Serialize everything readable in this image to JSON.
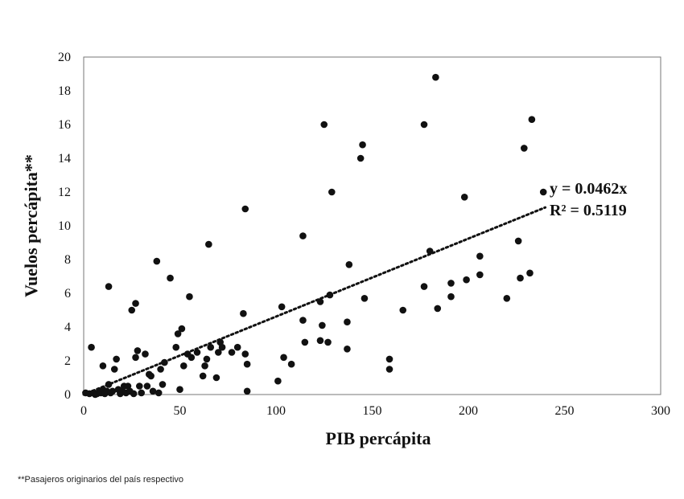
{
  "chart_data": {
    "type": "scatter",
    "title": "",
    "xlabel": "PIB percápita",
    "ylabel": "Vuelos percápita**",
    "xlim": [
      0,
      300
    ],
    "ylim": [
      0,
      20
    ],
    "x_ticks": [
      0,
      50,
      100,
      150,
      200,
      250,
      300
    ],
    "y_ticks": [
      0,
      2,
      4,
      6,
      8,
      10,
      12,
      14,
      16,
      18,
      20
    ],
    "grid": false,
    "point_color": "#111111",
    "trendline": {
      "type": "linear through origin",
      "slope": 0.0462,
      "x_range": [
        0,
        240
      ],
      "style": "dotted",
      "equation": "y = 0.0462x",
      "r_squared": "R² = 0.5119"
    },
    "points": [
      [
        1,
        0.1
      ],
      [
        3,
        0.05
      ],
      [
        4,
        2.8
      ],
      [
        5,
        0.1
      ],
      [
        6,
        0
      ],
      [
        7,
        0.05
      ],
      [
        8,
        0.2
      ],
      [
        9,
        0.1
      ],
      [
        10,
        0.3
      ],
      [
        10,
        1.7
      ],
      [
        11,
        0.05
      ],
      [
        12,
        0.2
      ],
      [
        13,
        0.6
      ],
      [
        13,
        6.4
      ],
      [
        14,
        0.1
      ],
      [
        15,
        0.2
      ],
      [
        16,
        1.5
      ],
      [
        17,
        2.1
      ],
      [
        18,
        0.3
      ],
      [
        19,
        0.05
      ],
      [
        20,
        0.2
      ],
      [
        21,
        0.5
      ],
      [
        22,
        0.1
      ],
      [
        23,
        0.5
      ],
      [
        24,
        0.2
      ],
      [
        25,
        5
      ],
      [
        26,
        0.05
      ],
      [
        27,
        5.4
      ],
      [
        27,
        2.2
      ],
      [
        28,
        2.6
      ],
      [
        29,
        0.5
      ],
      [
        30,
        0.1
      ],
      [
        32,
        2.4
      ],
      [
        33,
        0.5
      ],
      [
        34,
        1.2
      ],
      [
        35,
        1.1
      ],
      [
        36,
        0.2
      ],
      [
        38,
        7.9
      ],
      [
        39,
        0.1
      ],
      [
        40,
        1.5
      ],
      [
        41,
        0.6
      ],
      [
        42,
        1.9
      ],
      [
        45,
        6.9
      ],
      [
        48,
        2.8
      ],
      [
        49,
        3.6
      ],
      [
        50,
        0.3
      ],
      [
        51,
        3.9
      ],
      [
        52,
        1.7
      ],
      [
        54,
        2.4
      ],
      [
        55,
        5.8
      ],
      [
        56,
        2.2
      ],
      [
        59,
        2.5
      ],
      [
        62,
        1.1
      ],
      [
        63,
        1.7
      ],
      [
        64,
        2.1
      ],
      [
        65,
        8.9
      ],
      [
        66,
        2.8
      ],
      [
        69,
        1.0
      ],
      [
        70,
        2.5
      ],
      [
        71,
        3.1
      ],
      [
        72,
        2.8
      ],
      [
        77,
        2.5
      ],
      [
        80,
        2.8
      ],
      [
        83,
        4.8
      ],
      [
        84,
        2.4
      ],
      [
        84,
        11
      ],
      [
        85,
        0.2
      ],
      [
        85,
        1.8
      ],
      [
        101,
        0.8
      ],
      [
        103,
        5.2
      ],
      [
        104,
        2.2
      ],
      [
        108,
        1.8
      ],
      [
        114,
        4.4
      ],
      [
        114,
        9.4
      ],
      [
        115,
        3.1
      ],
      [
        123,
        3.2
      ],
      [
        123,
        5.5
      ],
      [
        124,
        4.1
      ],
      [
        125,
        16
      ],
      [
        127,
        3.1
      ],
      [
        128,
        5.9
      ],
      [
        129,
        12
      ],
      [
        137,
        4.3
      ],
      [
        137,
        2.7
      ],
      [
        138,
        7.7
      ],
      [
        144,
        14
      ],
      [
        145,
        14.8
      ],
      [
        146,
        5.7
      ],
      [
        159,
        2.1
      ],
      [
        159,
        1.5
      ],
      [
        166,
        5
      ],
      [
        177,
        6.4
      ],
      [
        177,
        16
      ],
      [
        180,
        8.5
      ],
      [
        183,
        18.8
      ],
      [
        184,
        5.1
      ],
      [
        191,
        6.6
      ],
      [
        191,
        5.8
      ],
      [
        198,
        11.7
      ],
      [
        199,
        6.8
      ],
      [
        206,
        8.2
      ],
      [
        206,
        7.1
      ],
      [
        220,
        5.7
      ],
      [
        226,
        9.1
      ],
      [
        227,
        6.9
      ],
      [
        229,
        14.6
      ],
      [
        232,
        7.2
      ],
      [
        233,
        16.3
      ],
      [
        239,
        12
      ]
    ]
  },
  "footnote": "**Pasajeros originarios del país respectivo"
}
